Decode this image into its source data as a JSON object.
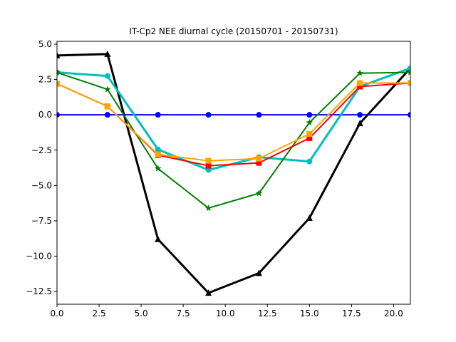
{
  "chart_data": {
    "type": "line",
    "title": "IT-Cp2 NEE diurnal cycle (20150701 - 20150731)",
    "xlabel": "",
    "ylabel": "",
    "xlim": [
      0,
      21
    ],
    "ylim": [
      -13.4,
      5.2
    ],
    "xticks": [
      0.0,
      2.5,
      5.0,
      7.5,
      10.0,
      12.5,
      15.0,
      17.5,
      20.0
    ],
    "xtick_labels": [
      "0.0",
      "2.5",
      "5.0",
      "7.5",
      "10.0",
      "12.5",
      "15.0",
      "17.5",
      "20.0"
    ],
    "yticks": [
      5.0,
      2.5,
      0.0,
      -2.5,
      -5.0,
      -7.5,
      -10.0,
      -12.5
    ],
    "ytick_labels": [
      "5.0",
      "2.5",
      "0.0",
      "−2.5",
      "−5.0",
      "−7.5",
      "−10.0",
      "−12.5"
    ],
    "grid": false,
    "x": [
      0,
      3,
      6,
      9,
      12,
      15,
      18,
      21
    ],
    "series": [
      {
        "color": "#0000ff",
        "marker": "circle",
        "width": 2,
        "values": [
          0,
          0,
          0,
          0,
          0,
          0,
          0,
          0
        ]
      },
      {
        "color": "#000000",
        "marker": "triangle",
        "width": 3,
        "values": [
          4.2,
          4.3,
          -8.8,
          -12.6,
          -11.2,
          -7.3,
          -0.6,
          3.3
        ]
      },
      {
        "color": "#00bfbf",
        "marker": "circle",
        "width": 3,
        "values": [
          3.0,
          2.75,
          -2.45,
          -3.9,
          -3.0,
          -3.3,
          2.0,
          3.3
        ]
      },
      {
        "color": "#008000",
        "marker": "star",
        "width": 2,
        "values": [
          3.0,
          1.8,
          -3.8,
          -6.6,
          -5.55,
          -0.55,
          2.95,
          3.0
        ]
      },
      {
        "color": "#ff0000",
        "marker": "square",
        "width": 2,
        "values": [
          2.2,
          0.6,
          -2.85,
          -3.6,
          -3.4,
          -1.65,
          2.0,
          2.25
        ]
      },
      {
        "color": "#ffa500",
        "marker": "square",
        "width": 2,
        "values": [
          2.2,
          0.6,
          -2.8,
          -3.25,
          -3.1,
          -1.35,
          2.25,
          2.25
        ]
      }
    ]
  }
}
